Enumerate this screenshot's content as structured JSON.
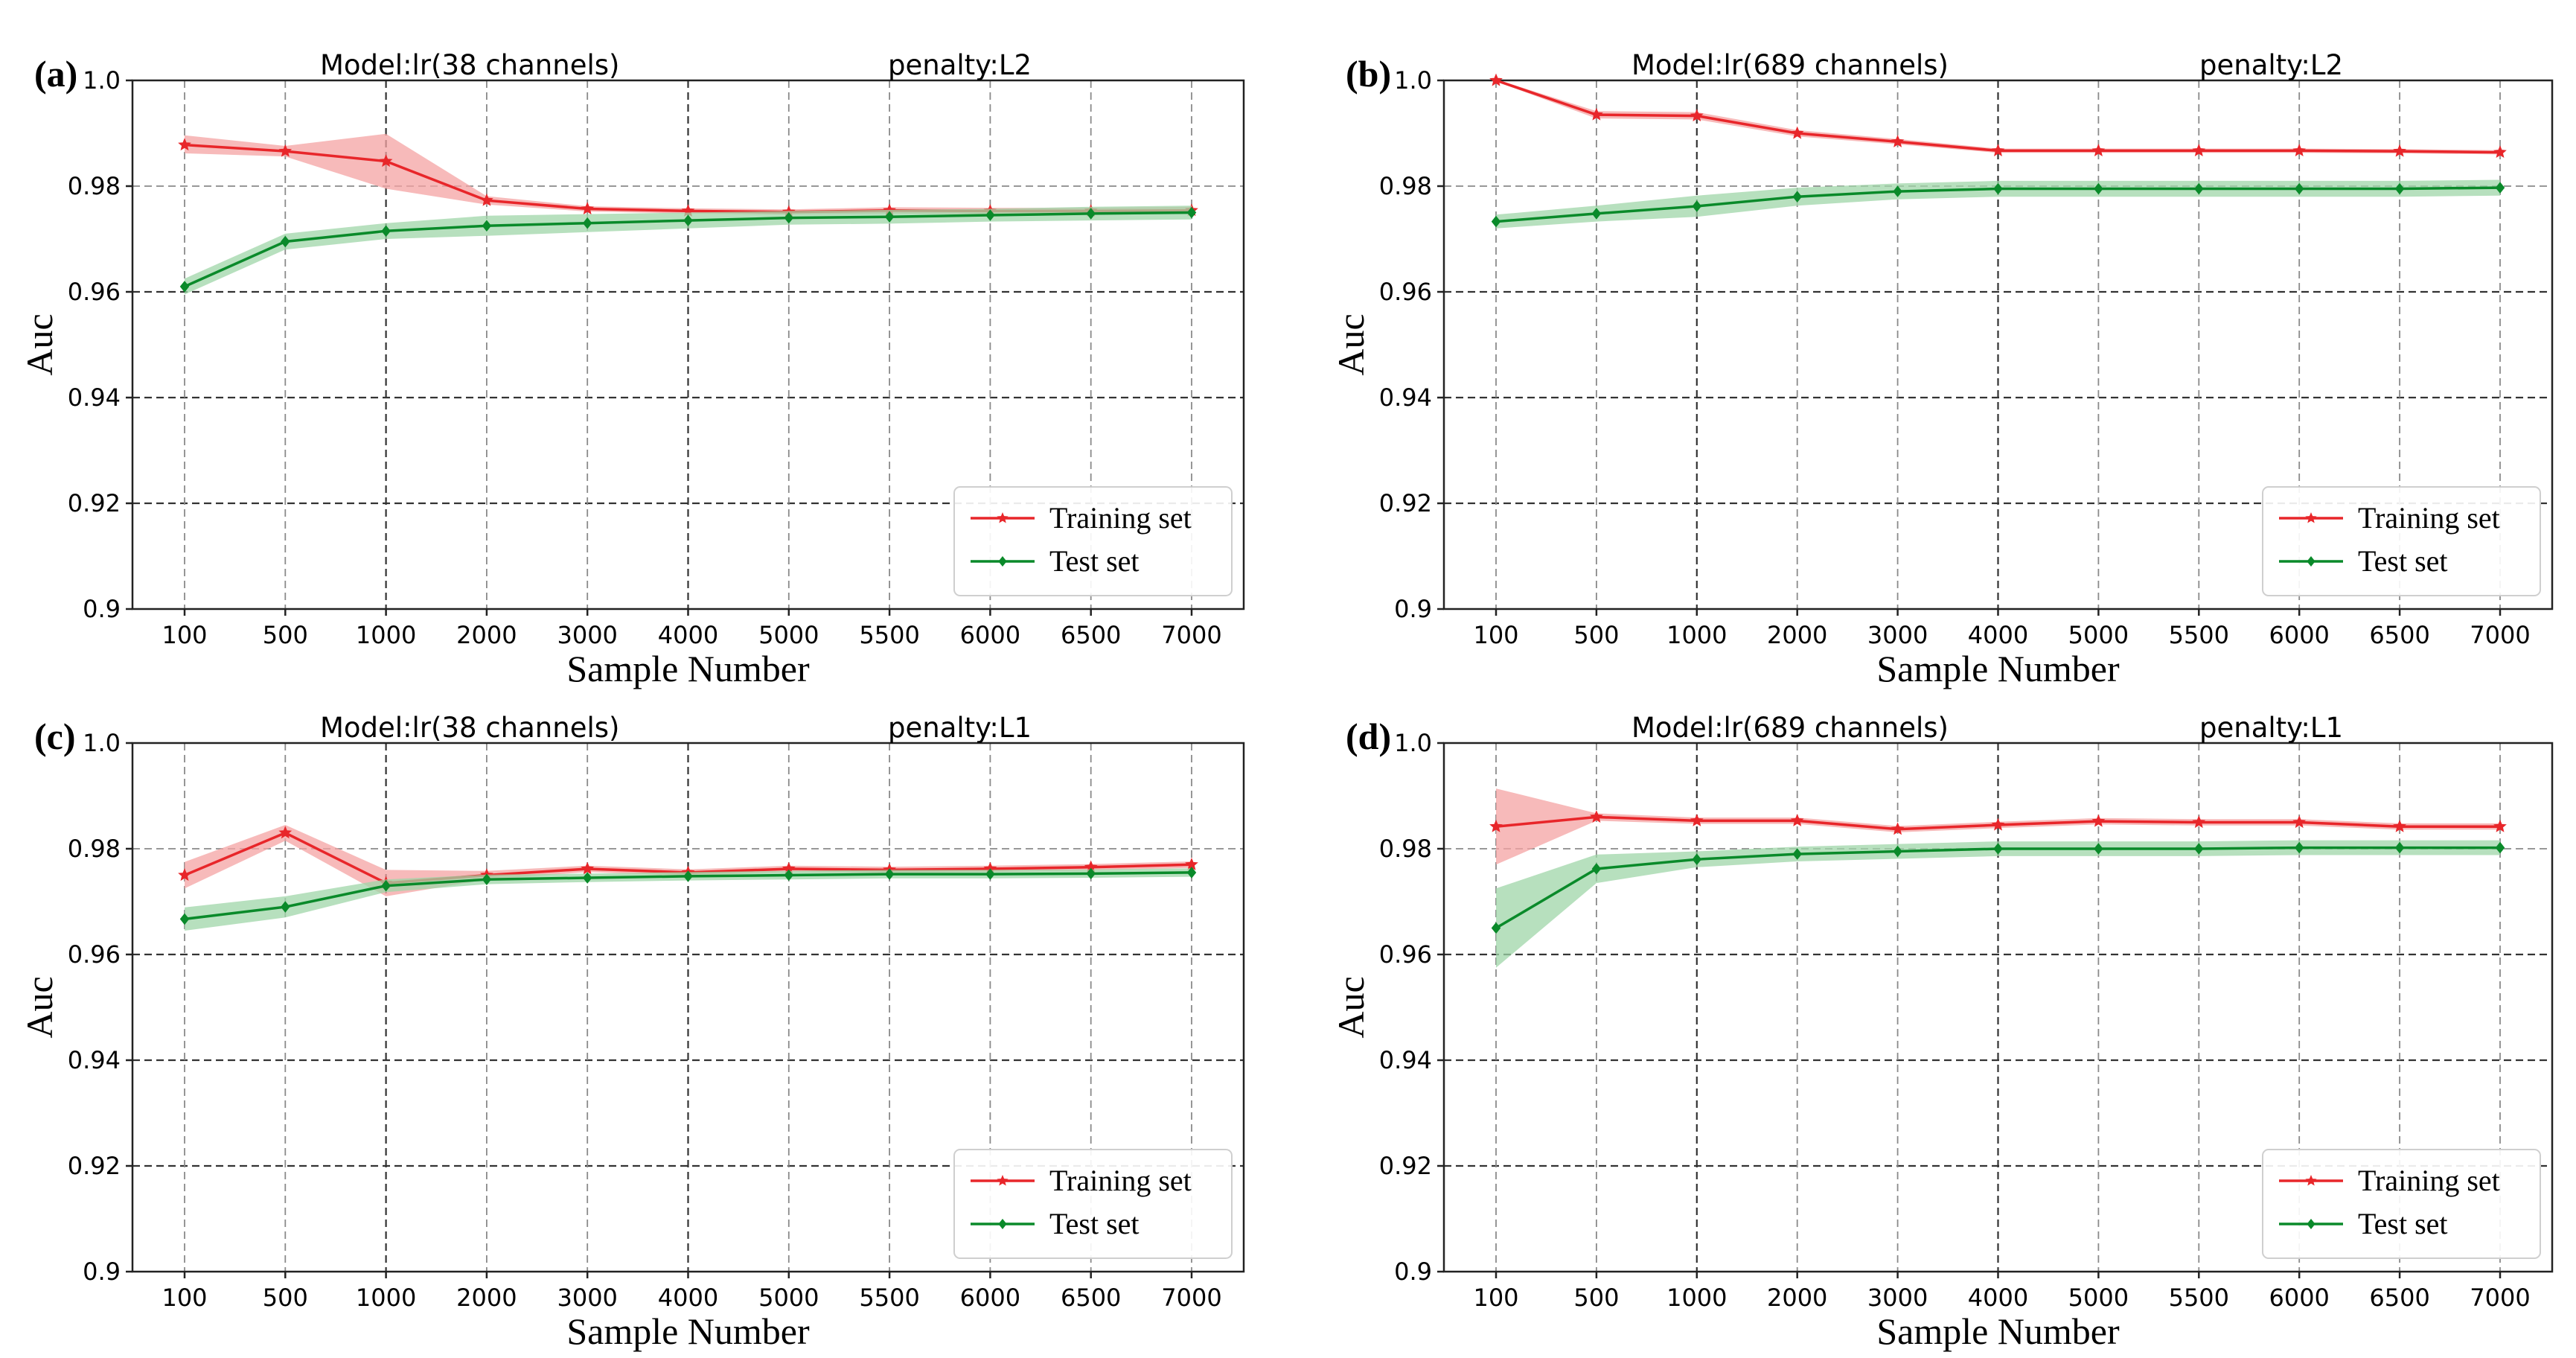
{
  "chart_data": [
    {
      "type": "line",
      "panel_label": "(a)",
      "title_left": "Model:lr(38 channels)",
      "title_right": "penalty:L2",
      "xlabel": "Sample Number",
      "ylabel": "Auc",
      "categories": [
        "100",
        "500",
        "1000",
        "2000",
        "3000",
        "4000",
        "5000",
        "5500",
        "6000",
        "6500",
        "7000"
      ],
      "ylim": [
        0.9,
        1.0
      ],
      "yticks": [
        0.9,
        0.92,
        0.94,
        0.96,
        0.98,
        1.0
      ],
      "ytick_labels": [
        "0.9",
        "0.92",
        "0.94",
        "0.96",
        "0.98",
        "1.0"
      ],
      "legend_position": "lower-right",
      "grid": true,
      "series": [
        {
          "name": "Training set",
          "color": "#e8262a",
          "band_color": "#f4a3a3",
          "marker": "star",
          "values": [
            0.9878,
            0.9866,
            0.9847,
            0.9773,
            0.9757,
            0.9753,
            0.9751,
            0.9754,
            0.9753,
            0.9753,
            0.9754
          ],
          "lower": [
            0.9862,
            0.9856,
            0.9795,
            0.9765,
            0.9752,
            0.9748,
            0.9746,
            0.9748,
            0.9747,
            0.9747,
            0.9747
          ],
          "upper": [
            0.9896,
            0.9876,
            0.9899,
            0.9781,
            0.9762,
            0.9758,
            0.9756,
            0.976,
            0.9759,
            0.9759,
            0.9761
          ]
        },
        {
          "name": "Test set",
          "color": "#0a8a2a",
          "band_color": "#9fd6a8",
          "marker": "diamond",
          "values": [
            0.961,
            0.9695,
            0.9715,
            0.9725,
            0.973,
            0.9735,
            0.974,
            0.9742,
            0.9745,
            0.9748,
            0.975
          ],
          "lower": [
            0.9595,
            0.968,
            0.97,
            0.9706,
            0.9713,
            0.972,
            0.9727,
            0.9729,
            0.9733,
            0.9735,
            0.9737
          ],
          "upper": [
            0.9625,
            0.971,
            0.973,
            0.9744,
            0.9747,
            0.975,
            0.9753,
            0.9755,
            0.9757,
            0.9761,
            0.9763
          ]
        }
      ]
    },
    {
      "type": "line",
      "panel_label": "(b)",
      "title_left": "Model:lr(689 channels)",
      "title_right": "penalty:L2",
      "xlabel": "Sample Number",
      "ylabel": "Auc",
      "categories": [
        "100",
        "500",
        "1000",
        "2000",
        "3000",
        "4000",
        "5000",
        "5500",
        "6000",
        "6500",
        "7000"
      ],
      "ylim": [
        0.9,
        1.0
      ],
      "yticks": [
        0.9,
        0.92,
        0.94,
        0.96,
        0.98,
        1.0
      ],
      "ytick_labels": [
        "0.9",
        "0.92",
        "0.94",
        "0.96",
        "0.98",
        "1.0"
      ],
      "legend_position": "lower-right",
      "grid": true,
      "series": [
        {
          "name": "Training set",
          "color": "#e8262a",
          "band_color": "#f4a3a3",
          "marker": "star",
          "values": [
            1.0,
            0.9935,
            0.9933,
            0.99,
            0.9884,
            0.9867,
            0.9867,
            0.9867,
            0.9867,
            0.9866,
            0.9864
          ],
          "lower": [
            0.9998,
            0.9928,
            0.9926,
            0.9894,
            0.9879,
            0.9863,
            0.9863,
            0.9863,
            0.9863,
            0.9862,
            0.986
          ],
          "upper": [
            1.0002,
            0.9942,
            0.994,
            0.9906,
            0.9889,
            0.9871,
            0.9871,
            0.9871,
            0.9871,
            0.987,
            0.9868
          ]
        },
        {
          "name": "Test set",
          "color": "#0a8a2a",
          "band_color": "#9fd6a8",
          "marker": "diamond",
          "values": [
            0.9733,
            0.9748,
            0.9762,
            0.978,
            0.979,
            0.9795,
            0.9795,
            0.9795,
            0.9795,
            0.9795,
            0.9797
          ],
          "lower": [
            0.972,
            0.9733,
            0.9742,
            0.9763,
            0.9775,
            0.978,
            0.978,
            0.978,
            0.978,
            0.978,
            0.9782
          ],
          "upper": [
            0.9746,
            0.9763,
            0.9782,
            0.9797,
            0.9805,
            0.981,
            0.981,
            0.981,
            0.981,
            0.981,
            0.9812
          ]
        }
      ]
    },
    {
      "type": "line",
      "panel_label": "(c)",
      "title_left": "Model:lr(38 channels)",
      "title_right": "penalty:L1",
      "xlabel": "Sample Number",
      "ylabel": "Auc",
      "categories": [
        "100",
        "500",
        "1000",
        "2000",
        "3000",
        "4000",
        "5000",
        "5500",
        "6000",
        "6500",
        "7000"
      ],
      "ylim": [
        0.9,
        1.0
      ],
      "yticks": [
        0.9,
        0.92,
        0.94,
        0.96,
        0.98,
        1.0
      ],
      "ytick_labels": [
        "0.9",
        "0.92",
        "0.94",
        "0.96",
        "0.98",
        "1.0"
      ],
      "legend_position": "lower-right",
      "grid": true,
      "series": [
        {
          "name": "Training set",
          "color": "#e8262a",
          "band_color": "#f4a3a3",
          "marker": "star",
          "values": [
            0.975,
            0.983,
            0.9735,
            0.975,
            0.9762,
            0.9755,
            0.9762,
            0.976,
            0.9762,
            0.9765,
            0.977
          ],
          "lower": [
            0.9725,
            0.9815,
            0.971,
            0.9742,
            0.9756,
            0.9749,
            0.9756,
            0.9754,
            0.9756,
            0.9759,
            0.9764
          ],
          "upper": [
            0.9775,
            0.9845,
            0.976,
            0.9758,
            0.9768,
            0.9761,
            0.9768,
            0.9766,
            0.9768,
            0.9771,
            0.9776
          ]
        },
        {
          "name": "Test set",
          "color": "#0a8a2a",
          "band_color": "#9fd6a8",
          "marker": "diamond",
          "values": [
            0.9667,
            0.969,
            0.973,
            0.9742,
            0.9745,
            0.9748,
            0.975,
            0.9752,
            0.9752,
            0.9753,
            0.9755
          ],
          "lower": [
            0.9645,
            0.967,
            0.9718,
            0.9733,
            0.9737,
            0.974,
            0.9742,
            0.9744,
            0.9744,
            0.9745,
            0.9747
          ],
          "upper": [
            0.9689,
            0.971,
            0.9742,
            0.9751,
            0.9753,
            0.9756,
            0.9758,
            0.976,
            0.976,
            0.9761,
            0.9763
          ]
        }
      ]
    },
    {
      "type": "line",
      "panel_label": "(d)",
      "title_left": "Model:lr(689 channels)",
      "title_right": "penalty:L1",
      "xlabel": "Sample Number",
      "ylabel": "Auc",
      "categories": [
        "100",
        "500",
        "1000",
        "2000",
        "3000",
        "4000",
        "5000",
        "5500",
        "6000",
        "6500",
        "7000"
      ],
      "ylim": [
        0.9,
        1.0
      ],
      "yticks": [
        0.9,
        0.92,
        0.94,
        0.96,
        0.98,
        1.0
      ],
      "ytick_labels": [
        "0.9",
        "0.92",
        "0.94",
        "0.96",
        "0.98",
        "1.0"
      ],
      "legend_position": "lower-right",
      "grid": true,
      "series": [
        {
          "name": "Training set",
          "color": "#e8262a",
          "band_color": "#f4a3a3",
          "marker": "star",
          "values": [
            0.9842,
            0.986,
            0.9853,
            0.9853,
            0.9837,
            0.9845,
            0.9852,
            0.985,
            0.985,
            0.9842,
            0.9842
          ],
          "lower": [
            0.977,
            0.9853,
            0.9847,
            0.9847,
            0.9831,
            0.9839,
            0.9846,
            0.9844,
            0.9844,
            0.9836,
            0.9836
          ],
          "upper": [
            0.9914,
            0.9867,
            0.9859,
            0.9859,
            0.9843,
            0.9851,
            0.9858,
            0.9856,
            0.9856,
            0.9848,
            0.9848
          ]
        },
        {
          "name": "Test set",
          "color": "#0a8a2a",
          "band_color": "#9fd6a8",
          "marker": "diamond",
          "values": [
            0.965,
            0.9762,
            0.978,
            0.979,
            0.9795,
            0.98,
            0.98,
            0.98,
            0.9802,
            0.9802,
            0.9802
          ],
          "lower": [
            0.9575,
            0.9735,
            0.9765,
            0.9776,
            0.9781,
            0.9786,
            0.9786,
            0.9786,
            0.9788,
            0.9788,
            0.9788
          ],
          "upper": [
            0.9725,
            0.9789,
            0.9795,
            0.9804,
            0.9809,
            0.9814,
            0.9814,
            0.9814,
            0.9816,
            0.9816,
            0.9816
          ]
        }
      ]
    }
  ]
}
